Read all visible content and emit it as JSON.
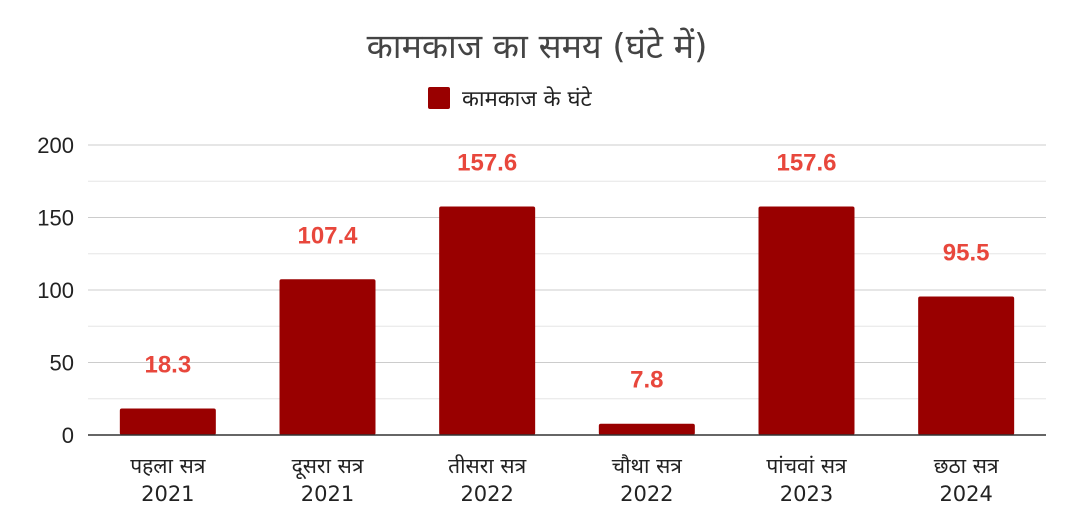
{
  "chart_data": {
    "type": "bar",
    "title": "कामकाज का समय (घंटे में)",
    "categories": [
      [
        "पहला सत्र",
        "2021"
      ],
      [
        "दूसरा सत्र",
        "2021"
      ],
      [
        "तीसरा सत्र",
        "2022"
      ],
      [
        "चौथा सत्र",
        "2022"
      ],
      [
        "पांचवां सत्र",
        "2023"
      ],
      [
        "छठा सत्र",
        "2024"
      ]
    ],
    "series": [
      {
        "name": "कामकाज के घंटे",
        "values": [
          18.3,
          107.4,
          157.6,
          7.8,
          157.6,
          95.5
        ],
        "color": "#990000"
      }
    ],
    "data_labels": [
      "18.3",
      "107.4",
      "157.6",
      "7.8",
      "157.6",
      "95.5"
    ],
    "data_label_color": "#e8473c",
    "ylim": [
      0,
      200
    ],
    "yticks": [
      "0",
      "50",
      "100",
      "150",
      "200"
    ],
    "minor_grid": true,
    "grid": true,
    "legend": "top-center"
  }
}
